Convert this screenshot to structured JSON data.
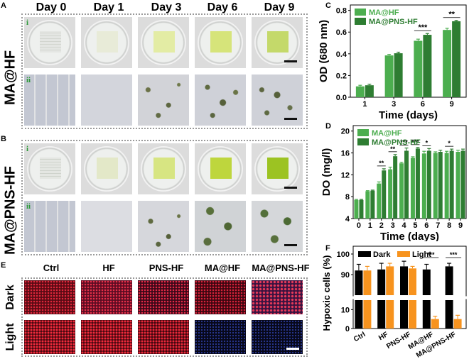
{
  "panels": {
    "A": {
      "label": "A",
      "row_label": "MA@HF",
      "columns": [
        "Day 0",
        "Day 1",
        "Day 3",
        "Day 6",
        "Day 9"
      ],
      "sub_rows": [
        "i",
        "ii"
      ]
    },
    "B": {
      "label": "B",
      "row_label": "MA@PNS-HF",
      "sub_rows": [
        "i",
        "ii"
      ]
    },
    "C": {
      "label": "C"
    },
    "D": {
      "label": "D"
    },
    "E": {
      "label": "E",
      "columns": [
        "Ctrl",
        "HF",
        "PNS-HF",
        "MA@HF",
        "MA@PNS-HF"
      ],
      "rows": [
        "Dark",
        "Light"
      ]
    },
    "F": {
      "label": "F"
    }
  },
  "colors": {
    "ma_hf": "#4cae4f",
    "ma_pns_hf": "#2e7d32",
    "dark": "#000000",
    "light": "#f7931e",
    "frame_dotted": "#9a9a9a"
  },
  "chart_data": [
    {
      "id": "C",
      "type": "bar",
      "title": "",
      "xlabel": "Time (days)",
      "ylabel": "OD (680 nm)",
      "categories": [
        "1",
        "3",
        "6",
        "9"
      ],
      "ylim": [
        0,
        0.85
      ],
      "yticks": [
        "0.0",
        "0.2",
        "0.4",
        "0.6",
        "0.8"
      ],
      "series": [
        {
          "name": "MA@HF",
          "values": [
            0.1,
            0.385,
            0.52,
            0.62
          ],
          "errors": [
            0.01,
            0.01,
            0.015,
            0.015
          ]
        },
        {
          "name": "MA@PNS-HF",
          "values": [
            0.11,
            0.405,
            0.575,
            0.7
          ],
          "errors": [
            0.01,
            0.01,
            0.012,
            0.008
          ]
        }
      ],
      "annotations": [
        {
          "category": "6",
          "text": "***"
        },
        {
          "category": "9",
          "text": "**"
        }
      ],
      "legend": "top-left",
      "grid": false
    },
    {
      "id": "D",
      "type": "bar",
      "title": "",
      "xlabel": "Time (days)",
      "ylabel": "DO (mg/l)",
      "categories": [
        "0",
        "1",
        "2",
        "3",
        "4",
        "5",
        "6",
        "7",
        "8",
        "9"
      ],
      "ylim": [
        4,
        21
      ],
      "yticks": [
        "4",
        "8",
        "12",
        "16",
        "20"
      ],
      "series": [
        {
          "name": "MA@HF",
          "values": [
            7.4,
            9.0,
            10.4,
            13.0,
            14.1,
            15.1,
            15.9,
            16.0,
            16.0,
            16.2
          ],
          "errors": [
            0.1,
            0.1,
            0.3,
            0.4,
            0.2,
            0.2,
            0.4,
            0.2,
            0.3,
            0.3
          ]
        },
        {
          "name": "MA@PNS-HF",
          "values": [
            7.4,
            9.1,
            12.8,
            15.4,
            16.4,
            16.8,
            16.4,
            16.2,
            16.4,
            16.4
          ],
          "errors": [
            0.1,
            0.1,
            0.3,
            0.3,
            0.5,
            0.2,
            0.4,
            0.3,
            0.3,
            0.3
          ]
        }
      ],
      "annotations": [
        {
          "category": "2",
          "text": "**"
        },
        {
          "category": "3",
          "text": "**"
        },
        {
          "category": "4",
          "text": "***"
        },
        {
          "category": "5",
          "text": "***"
        },
        {
          "category": "6",
          "text": "*"
        },
        {
          "category": "8",
          "text": "*"
        }
      ],
      "legend": "top-left",
      "grid": false
    },
    {
      "id": "F",
      "type": "bar",
      "title": "",
      "xlabel": "",
      "ylabel": "Hypoxic cells (%)",
      "categories": [
        "Ctrl",
        "HF",
        "PNS-HF",
        "MA@HF",
        "MA@PNS-HF"
      ],
      "yaxis_break": {
        "lower": [
          0,
          15
        ],
        "upper": [
          80,
          100
        ]
      },
      "yticks": [
        "0",
        "10",
        "90",
        "100"
      ],
      "series": [
        {
          "name": "Dark",
          "values": [
            92,
            92.5,
            94,
            92.5,
            94
          ],
          "errors": [
            3,
            3,
            2.5,
            2.5,
            1.5
          ]
        },
        {
          "name": "Light",
          "values": [
            92,
            94,
            93,
            5,
            5
          ],
          "errors": [
            2,
            1.5,
            1,
            1.5,
            2
          ]
        }
      ],
      "annotations": [
        {
          "category": "MA@HF",
          "text": "***"
        },
        {
          "category": "MA@PNS-HF",
          "text": "***"
        }
      ],
      "legend": "top-left",
      "grid": false
    }
  ]
}
